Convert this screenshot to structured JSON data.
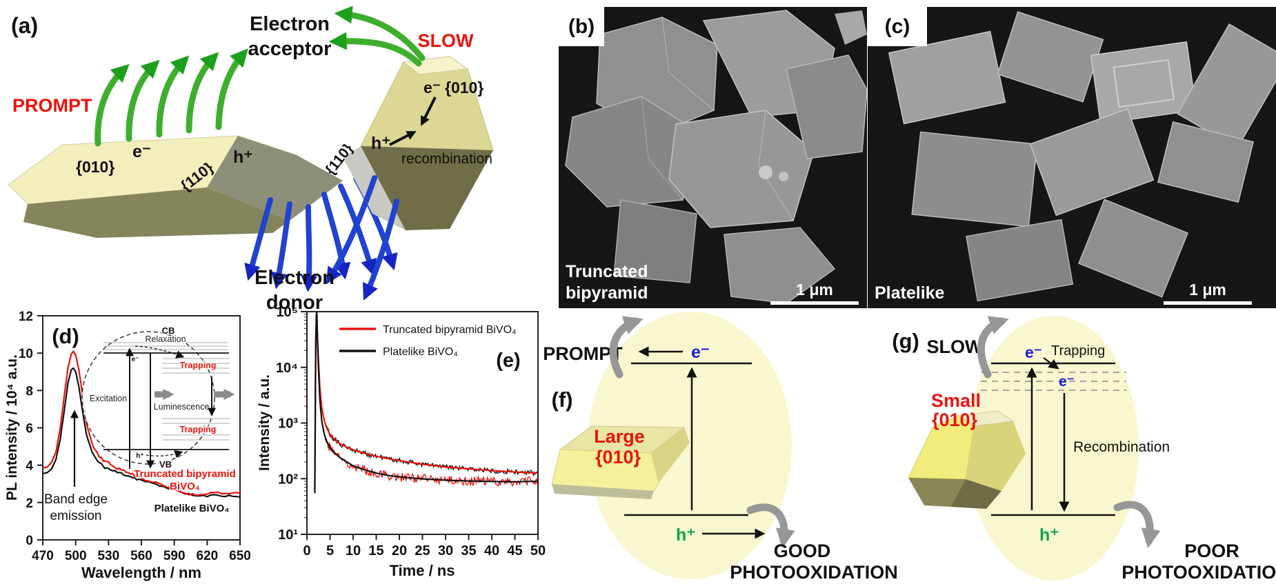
{
  "colors": {
    "red": "#e8140c",
    "blue_electron": "#1b1bd6",
    "green_hole": "#0fa351",
    "series_black": "#111111",
    "green_arrow": "#3fae2f",
    "blue_arrow": "#2143cf",
    "gray_arrow": "#979797",
    "facet_light": "#f2efbd",
    "facet_khaki": "#dcd795",
    "facet_dark": "#706e48",
    "ellipse_yellow": "#f9f7cf"
  },
  "a": {
    "label": "(a)",
    "prompt": "PROMPT",
    "slow": "SLOW",
    "acceptor_line1": "Electron",
    "acceptor_line2": "acceptor",
    "donor_line1": "Electron",
    "donor_line2": "donor",
    "plate": {
      "electron": "e⁻",
      "hole": "h⁺",
      "facet_top": "{010}",
      "facet_side": "{110}"
    },
    "bipyramid": {
      "electron": "e⁻",
      "facet_top": "{010}",
      "facet_side": "{110}",
      "hole": "h⁺",
      "recombination": "recombination"
    }
  },
  "b": {
    "label": "(b)",
    "caption_line1": "Truncated",
    "caption_line2": "bipyramid",
    "scale_bar": "1 μm"
  },
  "c": {
    "label": "(c)",
    "caption": "Platelike",
    "scale_bar": "1 μm"
  },
  "d": {
    "label": "(d)",
    "xlabel": "Wavelength / nm",
    "ylabel": "PL intensity / 10⁴ a.u.",
    "annotation_line1": "Band edge",
    "annotation_line2": "emission",
    "series_red_label_line1": "Truncated bipyramid",
    "series_red_label_line2": "BiVO₄",
    "series_black_label": "Platelike BiVO₄",
    "inset": {
      "cb": "CB",
      "vb": "VB",
      "relaxation": "Relaxation",
      "excitation": "Excitation",
      "luminescence": "Luminescence",
      "trapping_upper": "Trapping",
      "trapping_lower": "Trapping",
      "electron": "e⁻",
      "hole": "h⁺"
    }
  },
  "e": {
    "label": "(e)",
    "xlabel": "Time / ns",
    "ylabel": "Intensity / a.u.",
    "legend": [
      {
        "label": "Truncated bipyramid BiVO₄",
        "color": "#e8140c"
      },
      {
        "label": "Platelike BiVO₄",
        "color": "#111111"
      }
    ]
  },
  "f": {
    "label": "(f)",
    "rate": "PROMPT",
    "electron": "e⁻",
    "hole": "h⁺",
    "crystal_line1": "Large",
    "crystal_line2": "{010}",
    "outcome_line1": "GOOD",
    "outcome_line2": "PHOTOOXIDATION"
  },
  "g": {
    "label": "(g)",
    "rate": "SLOW",
    "electron": "e⁻",
    "trapping": "Trapping",
    "trapped_electron": "e⁻",
    "recombination": "Recombination",
    "hole": "h⁺",
    "crystal_line1": "Small",
    "crystal_line2": "{010}",
    "outcome_line1": "POOR",
    "outcome_line2": "PHOTOOXIDATION"
  },
  "chart_data": [
    {
      "type": "line",
      "panel": "d",
      "title": "",
      "xlabel": "Wavelength / nm",
      "ylabel": "PL intensity / 10⁴ a.u.",
      "xlim": [
        470,
        650
      ],
      "ylim": [
        0,
        12
      ],
      "grid": false,
      "xticks": [
        470,
        500,
        530,
        560,
        590,
        620,
        650
      ],
      "yticks": [
        0,
        2,
        4,
        6,
        8,
        10,
        12
      ],
      "annotations": [
        "Band edge emission at ~497 nm peak"
      ],
      "x": [
        470,
        474,
        478,
        482,
        486,
        490,
        493,
        496,
        498,
        500,
        503,
        506,
        510,
        515,
        520,
        525,
        530,
        536,
        542,
        548,
        554,
        560,
        570,
        580,
        590,
        600,
        610,
        620,
        630,
        640,
        650
      ],
      "series": [
        {
          "name": "Truncated bipyramid BiVO₄",
          "color": "#e8140c",
          "values": [
            3.85,
            3.9,
            4.15,
            4.7,
            6.0,
            7.9,
            9.2,
            9.95,
            10.1,
            9.9,
            9.1,
            7.9,
            6.2,
            5.15,
            4.6,
            4.3,
            4.1,
            3.9,
            3.75,
            3.6,
            3.45,
            3.3,
            3.1,
            2.9,
            2.7,
            2.5,
            2.4,
            2.5,
            2.55,
            2.45,
            2.5
          ]
        },
        {
          "name": "Platelike BiVO₄",
          "color": "#111111",
          "values": [
            3.55,
            3.6,
            3.8,
            4.3,
            5.4,
            7.1,
            8.4,
            9.1,
            9.2,
            9.0,
            8.2,
            7.0,
            5.6,
            4.7,
            4.2,
            3.95,
            3.8,
            3.65,
            3.55,
            3.45,
            3.3,
            3.2,
            3.0,
            2.85,
            2.7,
            2.5,
            2.35,
            2.35,
            2.4,
            2.35,
            2.3
          ]
        }
      ]
    },
    {
      "type": "line",
      "panel": "e",
      "yscale": "log",
      "xlabel": "Time / ns",
      "ylabel": "Intensity / a.u.",
      "xlim": [
        0,
        50
      ],
      "ylim": [
        10,
        100000
      ],
      "grid": false,
      "xticks": [
        0,
        5,
        10,
        15,
        20,
        25,
        30,
        35,
        40,
        45,
        50
      ],
      "ytick_labels": [
        "10¹",
        "10²",
        "10³",
        "10⁴",
        "10⁵"
      ],
      "legend_position": "upper right inside",
      "x": [
        1.7,
        1.9,
        2.1,
        2.4,
        2.8,
        3.2,
        3.7,
        4.2,
        5,
        6,
        7,
        8,
        10,
        12,
        15,
        18,
        21,
        25,
        30,
        35,
        40,
        45,
        50
      ],
      "series": [
        {
          "name": "Truncated bipyramid BiVO₄",
          "color": "#e8140c",
          "values": [
            55,
            30000,
            130000,
            15000,
            2600,
            1100,
            650,
            480,
            360,
            290,
            245,
            215,
            170,
            148,
            126,
            113,
            106,
            99,
            94,
            91,
            89,
            88,
            90
          ]
        },
        {
          "name": "Platelike BiVO₄",
          "color": "#111111",
          "values": [
            60,
            20000,
            85000,
            20000,
            4200,
            1900,
            1150,
            850,
            620,
            500,
            430,
            390,
            330,
            292,
            252,
            225,
            205,
            182,
            162,
            150,
            140,
            132,
            125
          ]
        }
      ]
    }
  ]
}
